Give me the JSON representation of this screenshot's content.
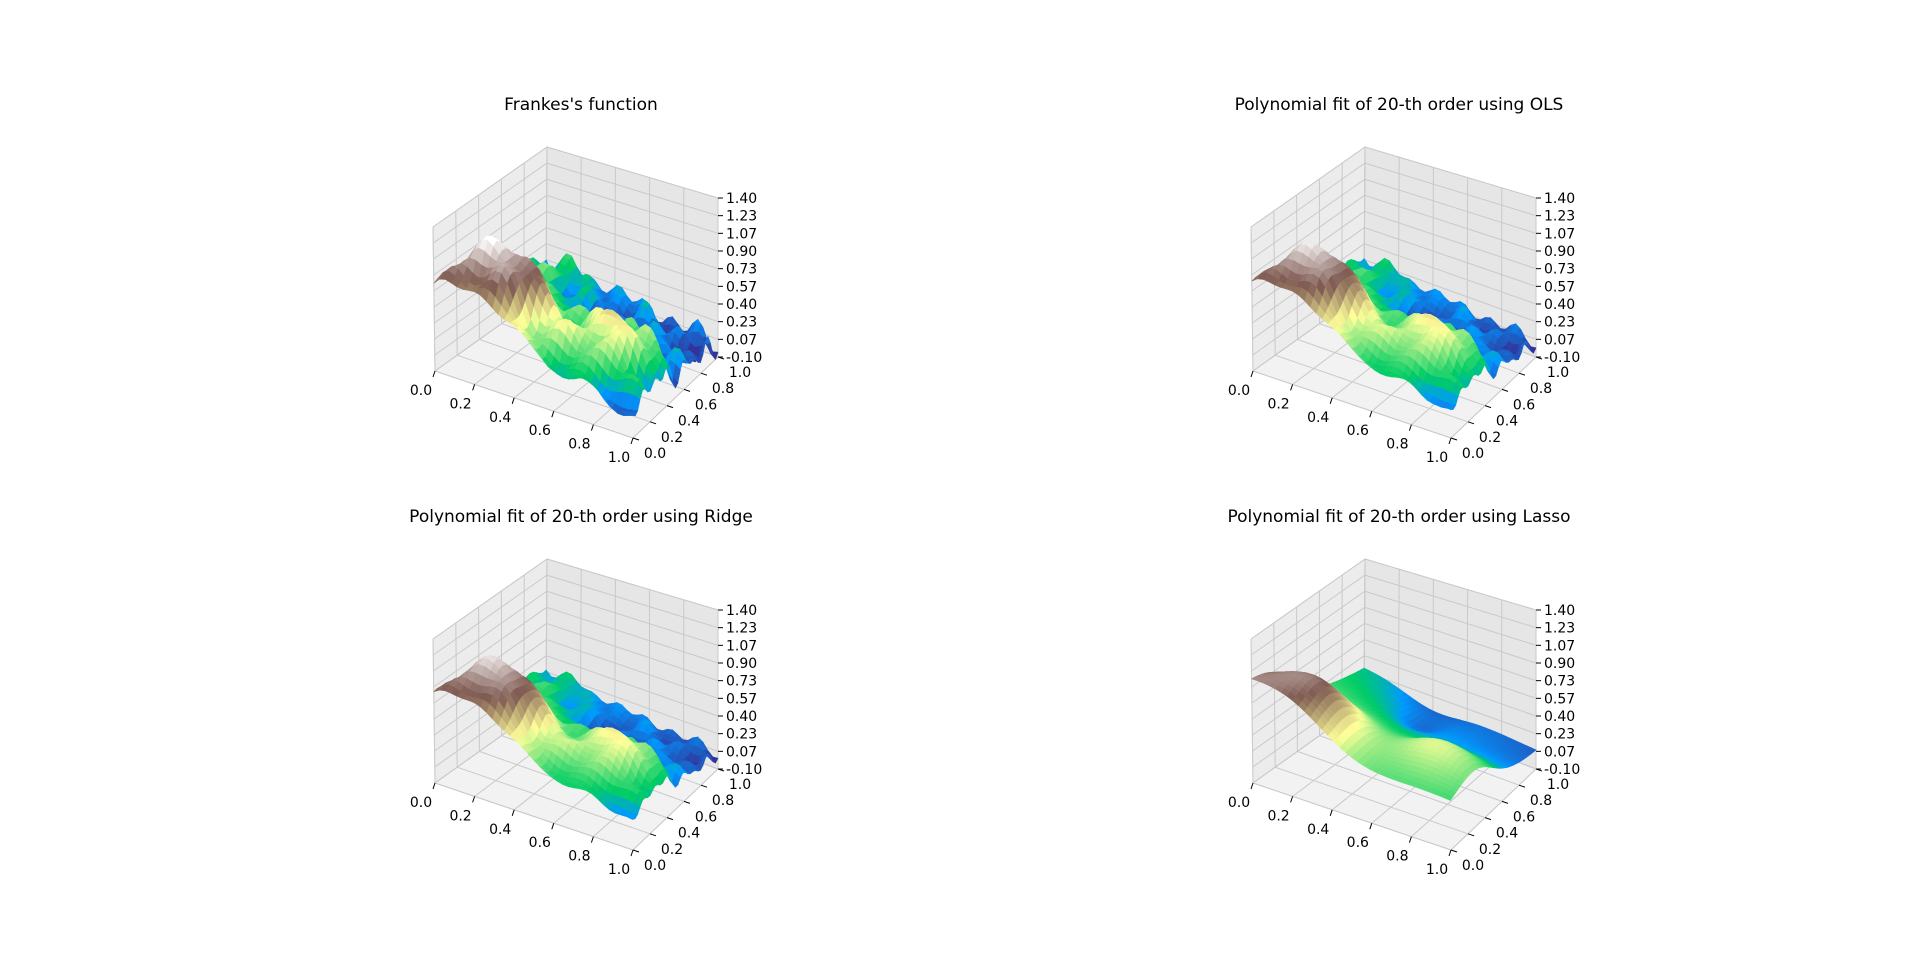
{
  "colormap": "terrain",
  "chart_data": [
    {
      "type": "surface",
      "title": "Frankes's function",
      "x_ticks": [
        "0.0",
        "0.2",
        "0.4",
        "0.6",
        "0.8",
        "1.0"
      ],
      "y_ticks": [
        "0.0",
        "0.2",
        "0.4",
        "0.6",
        "0.8",
        "1.0"
      ],
      "z_ticks": [
        "-0.10",
        "0.07",
        "0.23",
        "0.40",
        "0.57",
        "0.73",
        "0.90",
        "1.07",
        "1.23",
        "1.40"
      ],
      "xlim": [
        0,
        1
      ],
      "ylim": [
        0,
        1
      ],
      "zlim": [
        -0.1,
        1.4
      ],
      "grid": true,
      "noise": 1.0,
      "smooth": 0.0
    },
    {
      "type": "surface",
      "title": "Polynomial fit of 20-th order using OLS",
      "x_ticks": [
        "0.0",
        "0.2",
        "0.4",
        "0.6",
        "0.8",
        "1.0"
      ],
      "y_ticks": [
        "0.0",
        "0.2",
        "0.4",
        "0.6",
        "0.8",
        "1.0"
      ],
      "z_ticks": [
        "-0.10",
        "0.07",
        "0.23",
        "0.40",
        "0.57",
        "0.73",
        "0.90",
        "1.07",
        "1.23",
        "1.40"
      ],
      "xlim": [
        0,
        1
      ],
      "ylim": [
        0,
        1
      ],
      "zlim": [
        -0.1,
        1.4
      ],
      "grid": true,
      "noise": 0.7,
      "smooth": 0.1
    },
    {
      "type": "surface",
      "title": "Polynomial fit of 20-th order using Ridge",
      "x_ticks": [
        "0.0",
        "0.2",
        "0.4",
        "0.6",
        "0.8",
        "1.0"
      ],
      "y_ticks": [
        "0.0",
        "0.2",
        "0.4",
        "0.6",
        "0.8",
        "1.0"
      ],
      "z_ticks": [
        "-0.10",
        "0.07",
        "0.23",
        "0.40",
        "0.57",
        "0.73",
        "0.90",
        "1.07",
        "1.23",
        "1.40"
      ],
      "xlim": [
        0,
        1
      ],
      "ylim": [
        0,
        1
      ],
      "zlim": [
        -0.1,
        1.4
      ],
      "grid": true,
      "noise": 0.6,
      "smooth": 0.15
    },
    {
      "type": "surface",
      "title": "Polynomial fit of 20-th order using Lasso",
      "x_ticks": [
        "0.0",
        "0.2",
        "0.4",
        "0.6",
        "0.8",
        "1.0"
      ],
      "y_ticks": [
        "0.0",
        "0.2",
        "0.4",
        "0.6",
        "0.8",
        "1.0"
      ],
      "z_ticks": [
        "-0.10",
        "0.07",
        "0.23",
        "0.40",
        "0.57",
        "0.73",
        "0.90",
        "1.07",
        "1.23",
        "1.40"
      ],
      "xlim": [
        0,
        1
      ],
      "ylim": [
        0,
        1
      ],
      "zlim": [
        -0.1,
        1.4
      ],
      "grid": true,
      "noise": 0.0,
      "smooth": 0.55
    }
  ]
}
